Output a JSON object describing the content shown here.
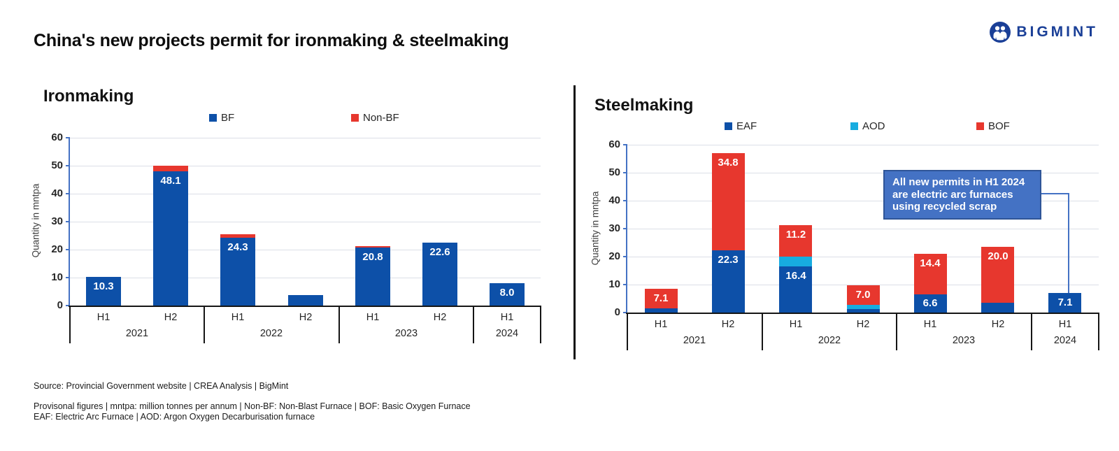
{
  "header": {
    "title": "China's new projects permit for ironmaking & steelmaking",
    "brand": "BIGMINT"
  },
  "chart_data": [
    {
      "type": "bar",
      "stacked": true,
      "title": "Ironmaking",
      "ylabel": "Quantity in mntpa",
      "ylim": [
        0,
        60
      ],
      "yticks": [
        0,
        10,
        20,
        30,
        40,
        50,
        60
      ],
      "grid": true,
      "legend_position": "top",
      "categories": [
        "H1",
        "H2",
        "H1",
        "H2",
        "H1",
        "H2",
        "H1"
      ],
      "years": [
        {
          "label": "2021",
          "span": 2
        },
        {
          "label": "2022",
          "span": 2
        },
        {
          "label": "2023",
          "span": 2
        },
        {
          "label": "2024",
          "span": 1
        }
      ],
      "series": [
        {
          "name": "BF",
          "color": "#0D50A8",
          "values": [
            10.3,
            48.1,
            24.3,
            3.7,
            20.8,
            22.6,
            8.0
          ],
          "labels": [
            "10.3",
            "48.1",
            "24.3",
            "",
            "20.8",
            "22.6",
            "8.0"
          ]
        },
        {
          "name": "Non-BF",
          "color": "#E7372E",
          "values": [
            0,
            1.9,
            1.2,
            0,
            0.5,
            0,
            0
          ],
          "labels": [
            "",
            "",
            "",
            "",
            "",
            "",
            ""
          ]
        }
      ]
    },
    {
      "type": "bar",
      "stacked": true,
      "title": "Steelmaking",
      "ylabel": "Quantity in mntpa",
      "ylim": [
        0,
        60
      ],
      "yticks": [
        0,
        10,
        20,
        30,
        40,
        50,
        60
      ],
      "grid": true,
      "legend_position": "top",
      "categories": [
        "H1",
        "H2",
        "H1",
        "H2",
        "H1",
        "H2",
        "H1"
      ],
      "years": [
        {
          "label": "2021",
          "span": 2
        },
        {
          "label": "2022",
          "span": 2
        },
        {
          "label": "2023",
          "span": 2
        },
        {
          "label": "2024",
          "span": 1
        }
      ],
      "series": [
        {
          "name": "EAF",
          "color": "#0D50A8",
          "values": [
            1.5,
            22.3,
            16.4,
            1.2,
            6.6,
            3.5,
            7.1
          ],
          "labels": [
            "",
            "22.3",
            "16.4",
            "",
            "6.6",
            "",
            "7.1"
          ]
        },
        {
          "name": "AOD",
          "color": "#17ACE0",
          "values": [
            0,
            0,
            3.6,
            1.6,
            0,
            0,
            0
          ],
          "labels": [
            "",
            "",
            "",
            "",
            "",
            "",
            ""
          ]
        },
        {
          "name": "BOF",
          "color": "#E7372E",
          "values": [
            7.1,
            34.8,
            11.2,
            7.0,
            14.4,
            20.0,
            0
          ],
          "labels": [
            "7.1",
            "34.8",
            "11.2",
            "7.0",
            "14.4",
            "20.0",
            ""
          ]
        }
      ],
      "annotation": {
        "text": "All new permits in H1 2024\nare electric arc furnaces\nusing recycled scrap"
      }
    }
  ],
  "footer": {
    "source": "Source: Provincial Government website | CREA Analysis | BigMint",
    "note_line1": "Provisonal figures | mntpa: million tonnes per annum | Non-BF: Non-Blast Furnace | BOF: Basic Oxygen Furnace",
    "note_line2": "EAF: Electric Arc Furnace | AOD: Argon Oxygen Decarburisation furnace"
  },
  "colors": {
    "bf_eaf_blue": "#0D50A8",
    "bof_nonbf_red": "#E7372E",
    "aod_cyan": "#17ACE0",
    "axis_blue": "#4472C4",
    "gridline": "#DBDFE7",
    "annotation_bg": "#4472C4",
    "annotation_border": "#2F5597",
    "brand_blue": "#1A3F97"
  }
}
